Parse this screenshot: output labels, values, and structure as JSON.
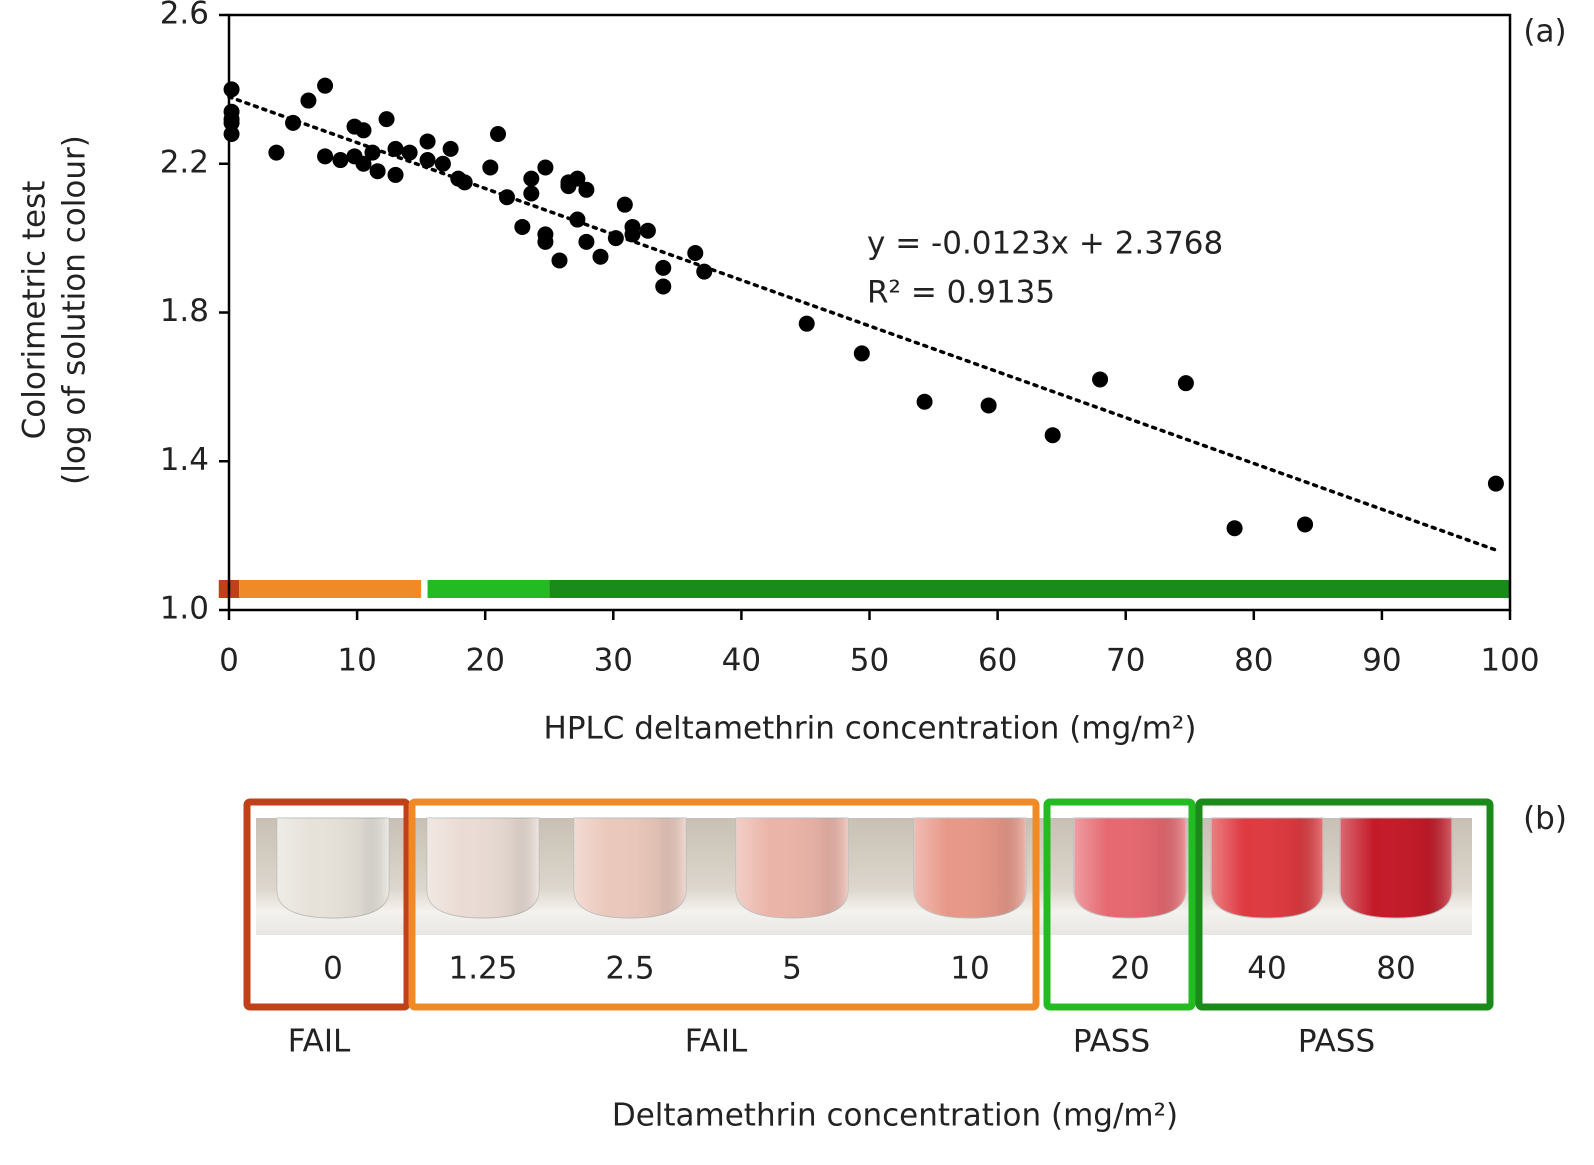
{
  "chart_data": {
    "type": "scatter",
    "panel_label": "(a)",
    "y_label_lines": [
      "Colorimetric test",
      "(log of solution colour)"
    ],
    "x_label": "HPLC deltamethrin concentration (mg/m²)",
    "xlim": [
      0,
      100
    ],
    "xticks": [
      0,
      10,
      20,
      30,
      40,
      50,
      60,
      70,
      80,
      90,
      100
    ],
    "ylim": [
      1.0,
      2.6
    ],
    "yticks": [
      {
        "value": 1.0,
        "label": "1.0"
      },
      1.4,
      1.8,
      2.2,
      2.6
    ],
    "color": "#000000",
    "x": [
      0.2,
      0.2,
      0.2,
      0.2,
      0.2,
      3.7,
      5.0,
      6.2,
      7.5,
      7.5,
      8.7,
      9.8,
      9.8,
      10.5,
      10.5,
      11.2,
      11.6,
      12.3,
      13.0,
      13.0,
      14.1,
      15.5,
      15.5,
      16.7,
      17.3,
      17.9,
      18.4,
      20.4,
      21.0,
      21.7,
      22.9,
      23.6,
      23.6,
      24.7,
      24.7,
      24.7,
      25.8,
      26.5,
      26.5,
      27.2,
      27.2,
      27.9,
      27.9,
      29.0,
      30.2,
      30.9,
      31.5,
      31.5,
      32.7,
      33.9,
      33.9,
      36.4,
      37.1,
      45.1,
      49.4,
      54.3,
      59.3,
      64.3,
      68.0,
      74.7,
      78.5,
      84.0,
      98.9
    ],
    "values": [
      2.4,
      2.34,
      2.32,
      2.31,
      2.28,
      2.23,
      2.31,
      2.37,
      2.41,
      2.22,
      2.21,
      2.3,
      2.22,
      2.29,
      2.2,
      2.23,
      2.18,
      2.32,
      2.24,
      2.17,
      2.23,
      2.26,
      2.21,
      2.2,
      2.24,
      2.16,
      2.15,
      2.19,
      2.28,
      2.11,
      2.03,
      2.16,
      2.12,
      2.19,
      2.01,
      1.99,
      1.94,
      2.15,
      2.14,
      2.16,
      2.05,
      2.13,
      1.99,
      1.95,
      2.0,
      2.09,
      2.01,
      2.03,
      2.02,
      1.92,
      1.87,
      1.96,
      1.91,
      1.77,
      1.69,
      1.56,
      1.55,
      1.47,
      1.62,
      1.61,
      1.22,
      1.23,
      1.34
    ],
    "trendline": {
      "x": [
        0,
        99
      ],
      "y": [
        2.38,
        1.16
      ]
    },
    "equation_lines": [
      "y = -0.0123x + 2.3768",
      "R² = 0.9135"
    ],
    "bands": [
      {
        "x": [
          -0.8,
          0.8
        ],
        "color": "#c0401a"
      },
      {
        "x": [
          0.8,
          15.0
        ],
        "color": "#f08a26"
      },
      {
        "x": [
          15.5,
          25.0
        ],
        "color": "#22bb22"
      },
      {
        "x": [
          25.0,
          100
        ],
        "color": "#1a8a1a"
      }
    ]
  },
  "panel_b": {
    "panel_label": "(b)",
    "x_label": "Deltamethrin concentration (mg/m²)",
    "groups": [
      {
        "label": "FAIL",
        "color": "#c0401a",
        "items": [
          {
            "label": "0",
            "color": "#e6e2da"
          }
        ]
      },
      {
        "label": "FAIL",
        "color": "#f08a26",
        "items": [
          {
            "label": "1.25",
            "color": "#eadcd4"
          },
          {
            "label": "2.5",
            "color": "#ebc8bc"
          },
          {
            "label": "5",
            "color": "#ebb4a8"
          },
          {
            "label": "10",
            "color": "#e89888"
          }
        ]
      },
      {
        "label": "PASS",
        "color": "#22bb22",
        "items": [
          {
            "label": "20",
            "color": "#e66870"
          }
        ]
      },
      {
        "label": "PASS",
        "color": "#1a8a1a",
        "items": [
          {
            "label": "40",
            "color": "#de3a40"
          },
          {
            "label": "80",
            "color": "#c41a28"
          }
        ]
      }
    ]
  }
}
